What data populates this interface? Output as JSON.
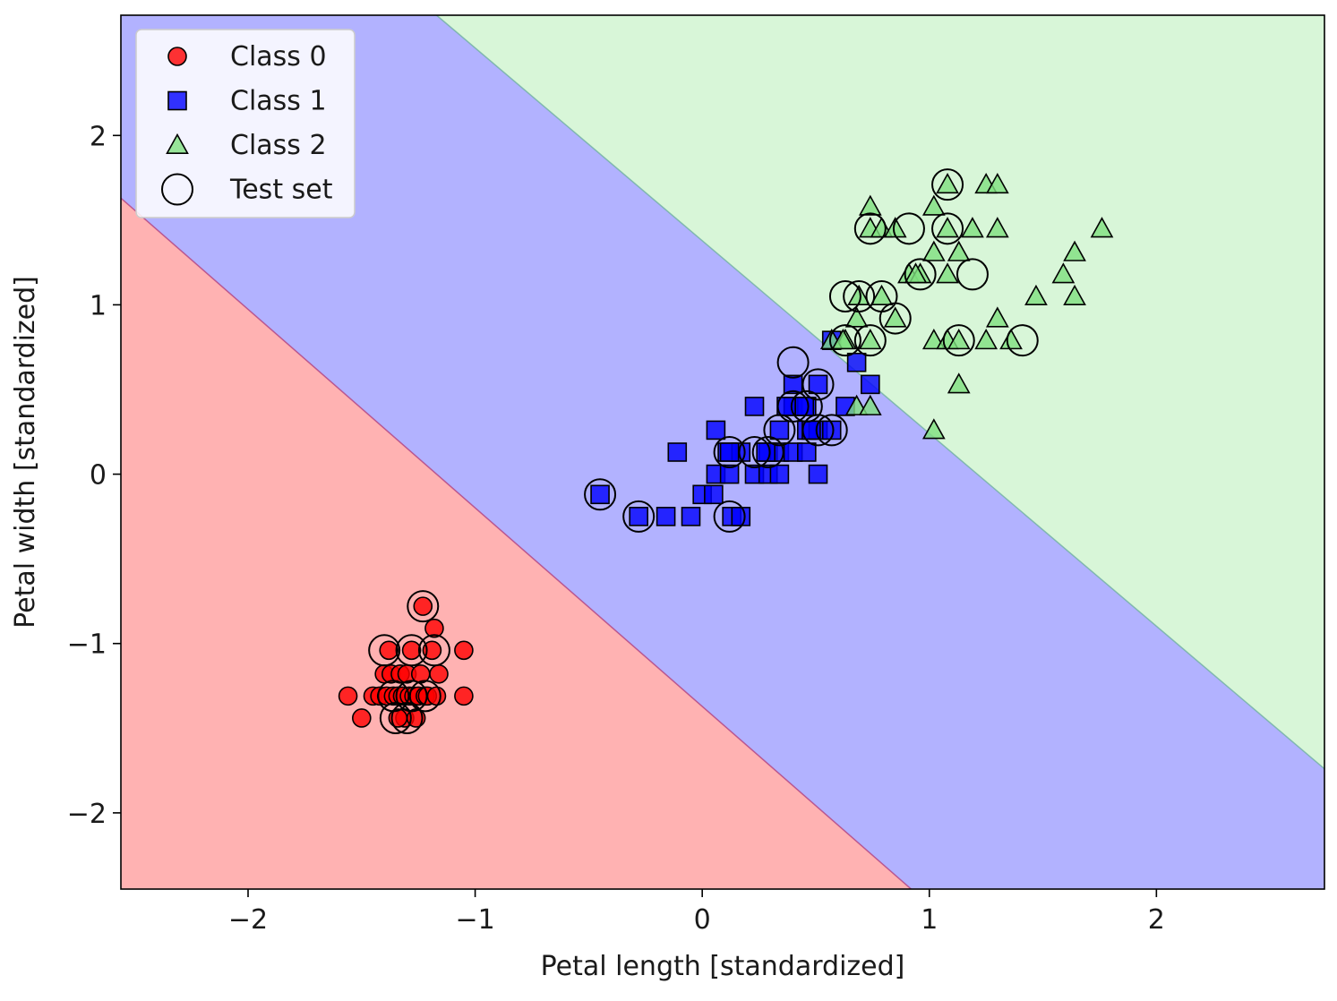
{
  "chart_data": {
    "type": "scatter",
    "title": "",
    "xlabel": "Petal length [standardized]",
    "ylabel": "Petal width [standardized]",
    "xlim": [
      -2.56,
      2.74
    ],
    "ylim": [
      -2.45,
      2.71
    ],
    "xticks": [
      {
        "value": -2,
        "label": "−2"
      },
      {
        "value": -1,
        "label": "−1"
      },
      {
        "value": 0,
        "label": "0"
      },
      {
        "value": 1,
        "label": "1"
      },
      {
        "value": 2,
        "label": "2"
      }
    ],
    "yticks": [
      {
        "value": -2,
        "label": "−2"
      },
      {
        "value": -1,
        "label": "−1"
      },
      {
        "value": 0,
        "label": "0"
      },
      {
        "value": 1,
        "label": "1"
      },
      {
        "value": 2,
        "label": "2"
      }
    ],
    "grid": false,
    "legend_position": "top-left",
    "decision_regions": [
      {
        "class": "Class 0",
        "color": "#ff0000",
        "alpha": 0.3
      },
      {
        "class": "Class 1",
        "color": "#0000ff",
        "alpha": 0.3
      },
      {
        "class": "Class 2",
        "color": "#7fe07f",
        "alpha": 0.3
      }
    ],
    "boundaries": [
      {
        "between": [
          "Class 0",
          "Class 1"
        ],
        "points": [
          [
            -2.56,
            1.63
          ],
          [
            0.92,
            -2.45
          ]
        ]
      },
      {
        "between": [
          "Class 1",
          "Class 2"
        ],
        "points": [
          [
            -1.17,
            2.71
          ],
          [
            2.74,
            -1.74
          ]
        ]
      }
    ],
    "series": [
      {
        "name": "Class 0",
        "marker": "circle",
        "color": "#ff0000",
        "points": [
          [
            -1.56,
            -1.31
          ],
          [
            -1.5,
            -1.44
          ],
          [
            -1.45,
            -1.31
          ],
          [
            -1.42,
            -1.31
          ],
          [
            -1.4,
            -1.18
          ],
          [
            -1.39,
            -1.31
          ],
          [
            -1.37,
            -1.18
          ],
          [
            -1.36,
            -1.31
          ],
          [
            -1.34,
            -1.31
          ],
          [
            -1.33,
            -1.18
          ],
          [
            -1.32,
            -1.31
          ],
          [
            -1.31,
            -1.44
          ],
          [
            -1.3,
            -1.18
          ],
          [
            -1.29,
            -1.31
          ],
          [
            -1.28,
            -1.04
          ],
          [
            -1.27,
            -1.31
          ],
          [
            -1.26,
            -1.44
          ],
          [
            -1.25,
            -1.31
          ],
          [
            -1.24,
            -1.18
          ],
          [
            -1.22,
            -1.31
          ],
          [
            -1.21,
            -1.31
          ],
          [
            -1.19,
            -1.04
          ],
          [
            -1.18,
            -0.91
          ],
          [
            -1.17,
            -1.31
          ],
          [
            -1.16,
            -1.18
          ],
          [
            -1.23,
            -0.78
          ],
          [
            -1.05,
            -1.04
          ],
          [
            -1.05,
            -1.31
          ],
          [
            -1.34,
            -1.44
          ],
          [
            -1.38,
            -1.04
          ]
        ]
      },
      {
        "name": "Class 1",
        "marker": "square",
        "color": "#0000ff",
        "points": [
          [
            -0.45,
            -0.12
          ],
          [
            -0.28,
            -0.25
          ],
          [
            -0.16,
            -0.25
          ],
          [
            -0.11,
            0.13
          ],
          [
            -0.05,
            -0.25
          ],
          [
            0.0,
            -0.12
          ],
          [
            0.05,
            -0.12
          ],
          [
            0.06,
            0.26
          ],
          [
            0.06,
            0.0
          ],
          [
            0.11,
            0.13
          ],
          [
            0.12,
            0.0
          ],
          [
            0.13,
            -0.25
          ],
          [
            0.17,
            -0.25
          ],
          [
            0.17,
            0.13
          ],
          [
            0.23,
            0.0
          ],
          [
            0.23,
            0.4
          ],
          [
            0.29,
            0.13
          ],
          [
            0.29,
            0.0
          ],
          [
            0.34,
            0.13
          ],
          [
            0.34,
            0.26
          ],
          [
            0.34,
            0.0
          ],
          [
            0.4,
            0.4
          ],
          [
            0.4,
            0.53
          ],
          [
            0.4,
            0.13
          ],
          [
            0.46,
            0.26
          ],
          [
            0.46,
            0.4
          ],
          [
            0.46,
            0.13
          ],
          [
            0.51,
            0.53
          ],
          [
            0.51,
            0.0
          ],
          [
            0.51,
            0.26
          ],
          [
            0.57,
            0.26
          ],
          [
            0.57,
            0.79
          ],
          [
            0.63,
            0.4
          ],
          [
            0.68,
            0.66
          ],
          [
            0.74,
            0.53
          ],
          [
            0.45,
            0.4
          ],
          [
            0.12,
            0.13
          ],
          [
            0.28,
            0.13
          ],
          [
            0.48,
            0.26
          ],
          [
            0.37,
            0.4
          ]
        ]
      },
      {
        "name": "Class 2",
        "marker": "triangle",
        "color": "#7fe07f",
        "points": [
          [
            0.68,
            0.4
          ],
          [
            0.74,
            0.4
          ],
          [
            0.63,
            0.79
          ],
          [
            0.68,
            0.92
          ],
          [
            0.74,
            0.79
          ],
          [
            0.74,
            1.58
          ],
          [
            0.79,
            1.05
          ],
          [
            0.85,
            0.92
          ],
          [
            0.74,
            1.45
          ],
          [
            0.79,
            1.45
          ],
          [
            0.85,
            1.45
          ],
          [
            0.91,
            1.18
          ],
          [
            0.96,
            1.18
          ],
          [
            1.02,
            0.79
          ],
          [
            1.02,
            1.31
          ],
          [
            1.02,
            1.58
          ],
          [
            1.02,
            0.26
          ],
          [
            1.08,
            0.79
          ],
          [
            1.08,
            1.18
          ],
          [
            1.08,
            1.45
          ],
          [
            1.08,
            1.71
          ],
          [
            1.13,
            0.53
          ],
          [
            1.13,
            0.79
          ],
          [
            1.13,
            1.31
          ],
          [
            1.19,
            1.45
          ],
          [
            1.25,
            0.79
          ],
          [
            1.25,
            1.71
          ],
          [
            1.3,
            0.92
          ],
          [
            1.3,
            1.45
          ],
          [
            1.3,
            1.71
          ],
          [
            1.36,
            0.79
          ],
          [
            1.47,
            1.05
          ],
          [
            1.59,
            1.18
          ],
          [
            1.64,
            1.05
          ],
          [
            1.64,
            1.31
          ],
          [
            1.76,
            1.45
          ],
          [
            0.57,
            0.79
          ],
          [
            0.69,
            1.05
          ],
          [
            0.94,
            1.18
          ],
          [
            0.62,
            0.79
          ]
        ]
      }
    ],
    "test_set": {
      "name": "Test set",
      "marker": "open-circle",
      "color": "#000000",
      "points": [
        [
          -1.23,
          -0.78
        ],
        [
          -1.4,
          -1.04
        ],
        [
          -1.28,
          -1.04
        ],
        [
          -1.18,
          -1.04
        ],
        [
          -1.36,
          -1.31
        ],
        [
          -1.28,
          -1.31
        ],
        [
          -1.22,
          -1.31
        ],
        [
          -1.35,
          -1.44
        ],
        [
          -1.3,
          -1.44
        ],
        [
          -0.45,
          -0.12
        ],
        [
          -0.28,
          -0.25
        ],
        [
          0.12,
          -0.25
        ],
        [
          0.12,
          0.13
        ],
        [
          0.23,
          0.13
        ],
        [
          0.29,
          0.13
        ],
        [
          0.34,
          0.26
        ],
        [
          0.4,
          0.66
        ],
        [
          0.4,
          0.4
        ],
        [
          0.46,
          0.4
        ],
        [
          0.51,
          0.53
        ],
        [
          0.51,
          0.26
        ],
        [
          0.57,
          0.26
        ],
        [
          0.74,
          1.45
        ],
        [
          0.91,
          1.45
        ],
        [
          1.08,
          1.45
        ],
        [
          1.08,
          1.71
        ],
        [
          0.96,
          1.18
        ],
        [
          1.19,
          1.18
        ],
        [
          0.63,
          1.05
        ],
        [
          0.69,
          1.05
        ],
        [
          0.79,
          1.05
        ],
        [
          0.85,
          0.92
        ],
        [
          0.63,
          0.79
        ],
        [
          0.74,
          0.79
        ],
        [
          1.13,
          0.79
        ],
        [
          1.41,
          0.79
        ]
      ]
    },
    "legend": [
      {
        "label": "Class 0",
        "marker": "circle",
        "color": "#ff0000"
      },
      {
        "label": "Class 1",
        "marker": "square",
        "color": "#0000ff"
      },
      {
        "label": "Class 2",
        "marker": "triangle",
        "color": "#7fe07f"
      },
      {
        "label": "Test set",
        "marker": "open-circle",
        "color": "#000000"
      }
    ]
  }
}
